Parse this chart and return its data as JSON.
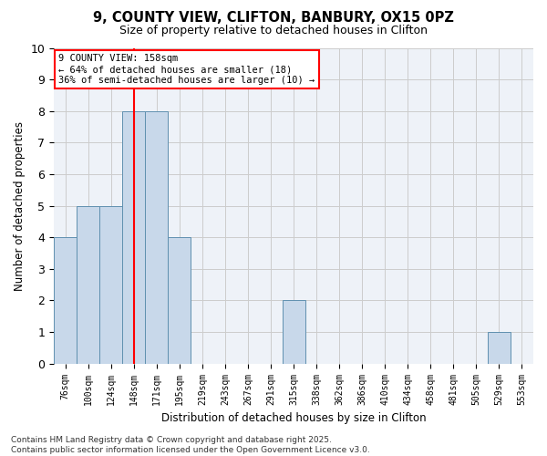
{
  "title_line1": "9, COUNTY VIEW, CLIFTON, BANBURY, OX15 0PZ",
  "title_line2": "Size of property relative to detached houses in Clifton",
  "xlabel": "Distribution of detached houses by size in Clifton",
  "ylabel": "Number of detached properties",
  "categories": [
    "76sqm",
    "100sqm",
    "124sqm",
    "148sqm",
    "171sqm",
    "195sqm",
    "219sqm",
    "243sqm",
    "267sqm",
    "291sqm",
    "315sqm",
    "338sqm",
    "362sqm",
    "386sqm",
    "410sqm",
    "434sqm",
    "458sqm",
    "481sqm",
    "505sqm",
    "529sqm",
    "553sqm"
  ],
  "values": [
    4,
    5,
    5,
    8,
    8,
    4,
    0,
    0,
    0,
    0,
    2,
    0,
    0,
    0,
    0,
    0,
    0,
    0,
    0,
    1,
    0
  ],
  "bar_color": "#c8d8ea",
  "bar_edge_color": "#6090b0",
  "grid_color": "#cccccc",
  "background_color": "#eef2f8",
  "red_line_x": 3,
  "annotation_text": "9 COUNTY VIEW: 158sqm\n← 64% of detached houses are smaller (18)\n36% of semi-detached houses are larger (10) →",
  "annotation_box_color": "white",
  "annotation_box_edge": "red",
  "footer_text": "Contains HM Land Registry data © Crown copyright and database right 2025.\nContains public sector information licensed under the Open Government Licence v3.0.",
  "ylim": [
    0,
    10
  ],
  "yticks": [
    0,
    1,
    2,
    3,
    4,
    5,
    6,
    7,
    8,
    9,
    10
  ]
}
